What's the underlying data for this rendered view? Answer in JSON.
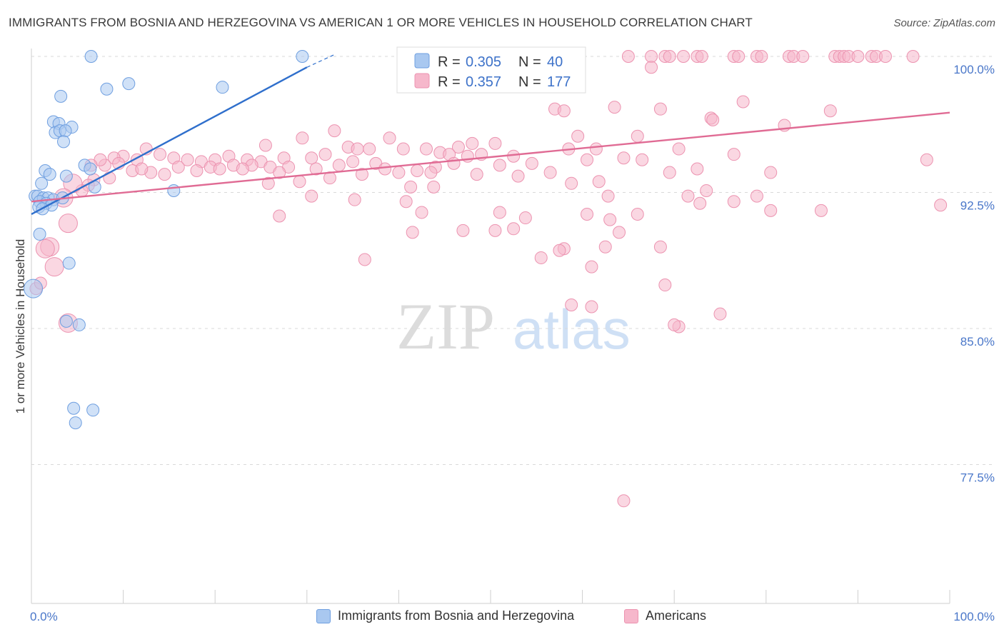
{
  "header": {
    "title": "IMMIGRANTS FROM BOSNIA AND HERZEGOVINA VS AMERICAN 1 OR MORE VEHICLES IN HOUSEHOLD CORRELATION CHART",
    "source": "Source: ZipAtlas.com"
  },
  "watermark": {
    "zip": "ZIP",
    "atlas": "atlas"
  },
  "legend": {
    "r_label": "R =",
    "n_label": "N =",
    "blue": {
      "r": "0.305",
      "n": "40"
    },
    "pink": {
      "r": "0.357",
      "n": "177"
    }
  },
  "colors": {
    "blue_fill": "#a9c8f0",
    "blue_stroke": "#6f9fe0",
    "blue_line": "#2f6fcc",
    "pink_fill": "#f6b7cb",
    "pink_stroke": "#ec93b0",
    "pink_line": "#e06b94",
    "tick_label": "#4a77c9",
    "grid": "#d9d9d9"
  },
  "chart_data": {
    "type": "scatter",
    "title": "IMMIGRANTS FROM BOSNIA AND HERZEGOVINA VS AMERICAN 1 OR MORE VEHICLES IN HOUSEHOLD CORRELATION CHART",
    "xlabel": "",
    "ylabel": "1 or more Vehicles in Household",
    "xlim": [
      0,
      100
    ],
    "ylim": [
      70,
      101.5
    ],
    "x_ticks": [
      "0.0%",
      "100.0%"
    ],
    "y_ticks": [
      {
        "value": 100.0,
        "label": "100.0%"
      },
      {
        "value": 92.5,
        "label": "92.5%"
      },
      {
        "value": 85.0,
        "label": "85.0%"
      },
      {
        "value": 77.5,
        "label": "77.5%"
      }
    ],
    "grid": true,
    "legend_position": "top-center",
    "series": [
      {
        "name": "Immigrants from Bosnia and Herzegovina",
        "color": "#a9c8f0",
        "r": 0.305,
        "n": 40,
        "trend": {
          "x": [
            0,
            30
          ],
          "y": [
            91.3,
            99.4
          ],
          "dash_x": [
            30,
            33
          ],
          "dash_y": [
            99.4,
            100.1
          ]
        },
        "points": [
          [
            6.5,
            100.0,
            1
          ],
          [
            29.5,
            100.0,
            1
          ],
          [
            8.2,
            98.2,
            1
          ],
          [
            10.6,
            98.5,
            1
          ],
          [
            20.8,
            98.3,
            1
          ],
          [
            3.2,
            97.8,
            1
          ],
          [
            2.4,
            96.4,
            1
          ],
          [
            3.0,
            96.3,
            1
          ],
          [
            4.4,
            96.1,
            1
          ],
          [
            2.6,
            95.8,
            1
          ],
          [
            3.1,
            95.9,
            1
          ],
          [
            3.7,
            95.9,
            1
          ],
          [
            3.5,
            95.3,
            1
          ],
          [
            5.8,
            94.0,
            1
          ],
          [
            6.4,
            93.8,
            1
          ],
          [
            1.5,
            93.7,
            1
          ],
          [
            2.0,
            93.5,
            1
          ],
          [
            3.8,
            93.4,
            1
          ],
          [
            1.1,
            93.0,
            1
          ],
          [
            6.9,
            92.8,
            1
          ],
          [
            15.5,
            92.6,
            1
          ],
          [
            0.4,
            92.3,
            1
          ],
          [
            0.7,
            92.3,
            1
          ],
          [
            1.3,
            92.2,
            1
          ],
          [
            1.8,
            92.2,
            1
          ],
          [
            2.4,
            92.1,
            1
          ],
          [
            0.9,
            92.0,
            1
          ],
          [
            1.6,
            91.9,
            1
          ],
          [
            2.2,
            91.8,
            1
          ],
          [
            3.4,
            92.2,
            1
          ],
          [
            0.8,
            91.7,
            1
          ],
          [
            1.2,
            91.6,
            1
          ],
          [
            0.9,
            90.2,
            1
          ],
          [
            4.1,
            88.6,
            1
          ],
          [
            0.2,
            87.2,
            2
          ],
          [
            5.2,
            85.2,
            1
          ],
          [
            3.8,
            85.4,
            1
          ],
          [
            4.6,
            80.6,
            1
          ],
          [
            6.7,
            80.5,
            1
          ],
          [
            4.8,
            79.8,
            1
          ]
        ]
      },
      {
        "name": "Americans",
        "color": "#f6b7cb",
        "r": 0.357,
        "n": 177,
        "trend": {
          "x": [
            0,
            100
          ],
          "y": [
            92.0,
            96.9
          ]
        },
        "points": [
          [
            65.0,
            100.0,
            1
          ],
          [
            67.5,
            100.0,
            1
          ],
          [
            69.0,
            100.0,
            1
          ],
          [
            69.5,
            100.0,
            1
          ],
          [
            71.0,
            100.0,
            1
          ],
          [
            72.5,
            100.0,
            1
          ],
          [
            73.0,
            100.0,
            1
          ],
          [
            76.5,
            100.0,
            1
          ],
          [
            77.0,
            100.0,
            1
          ],
          [
            79.0,
            100.0,
            1
          ],
          [
            79.5,
            100.0,
            1
          ],
          [
            82.5,
            100.0,
            1
          ],
          [
            83.0,
            100.0,
            1
          ],
          [
            84.0,
            100.0,
            1
          ],
          [
            87.5,
            100.0,
            1
          ],
          [
            88.0,
            100.0,
            1
          ],
          [
            88.5,
            100.0,
            1
          ],
          [
            89.0,
            100.0,
            1
          ],
          [
            90.0,
            100.0,
            1
          ],
          [
            91.5,
            100.0,
            1
          ],
          [
            92.0,
            100.0,
            1
          ],
          [
            93.0,
            100.0,
            1
          ],
          [
            96.0,
            100.0,
            1
          ],
          [
            53.5,
            99.5,
            1
          ],
          [
            67.5,
            99.4,
            1
          ],
          [
            53.0,
            98.8,
            1
          ],
          [
            77.5,
            97.5,
            1
          ],
          [
            57.0,
            97.1,
            1
          ],
          [
            58.0,
            97.0,
            1
          ],
          [
            63.5,
            97.2,
            1
          ],
          [
            68.5,
            97.1,
            1
          ],
          [
            87.0,
            97.0,
            1
          ],
          [
            74.0,
            96.6,
            1
          ],
          [
            74.2,
            96.5,
            1
          ],
          [
            82.0,
            96.2,
            1
          ],
          [
            33.0,
            95.9,
            1
          ],
          [
            59.5,
            95.6,
            1
          ],
          [
            66.0,
            95.6,
            1
          ],
          [
            50.5,
            95.2,
            1
          ],
          [
            39.0,
            95.5,
            1
          ],
          [
            46.5,
            95.0,
            1
          ],
          [
            48.0,
            95.2,
            1
          ],
          [
            29.5,
            95.5,
            1
          ],
          [
            34.5,
            95.0,
            1
          ],
          [
            25.5,
            95.1,
            1
          ],
          [
            35.5,
            94.9,
            1
          ],
          [
            36.8,
            94.9,
            1
          ],
          [
            40.5,
            94.9,
            1
          ],
          [
            43.0,
            94.9,
            1
          ],
          [
            44.5,
            94.7,
            1
          ],
          [
            49.0,
            94.6,
            1
          ],
          [
            45.5,
            94.6,
            1
          ],
          [
            47.5,
            94.5,
            1
          ],
          [
            52.5,
            94.5,
            1
          ],
          [
            58.5,
            94.9,
            1
          ],
          [
            61.5,
            94.9,
            1
          ],
          [
            70.5,
            94.9,
            1
          ],
          [
            76.5,
            94.6,
            1
          ],
          [
            32.0,
            94.6,
            1
          ],
          [
            30.5,
            94.4,
            1
          ],
          [
            27.5,
            94.4,
            1
          ],
          [
            25.0,
            94.2,
            1
          ],
          [
            23.5,
            94.3,
            1
          ],
          [
            21.5,
            94.5,
            1
          ],
          [
            20.0,
            94.3,
            1
          ],
          [
            18.5,
            94.2,
            1
          ],
          [
            17.0,
            94.3,
            1
          ],
          [
            15.5,
            94.4,
            1
          ],
          [
            14.0,
            94.6,
            1
          ],
          [
            12.5,
            94.9,
            1
          ],
          [
            11.5,
            94.3,
            1
          ],
          [
            10.0,
            94.5,
            1
          ],
          [
            9.0,
            94.4,
            1
          ],
          [
            8.0,
            94.0,
            1
          ],
          [
            7.5,
            94.3,
            1
          ],
          [
            6.5,
            94.0,
            1
          ],
          [
            22.0,
            94.0,
            1
          ],
          [
            24.0,
            94.0,
            1
          ],
          [
            26.0,
            93.9,
            1
          ],
          [
            28.0,
            93.9,
            1
          ],
          [
            31.0,
            93.8,
            1
          ],
          [
            33.5,
            94.0,
            1
          ],
          [
            35.0,
            94.2,
            1
          ],
          [
            37.5,
            94.1,
            1
          ],
          [
            38.5,
            93.8,
            1
          ],
          [
            42.0,
            93.7,
            1
          ],
          [
            44.0,
            93.9,
            1
          ],
          [
            46.0,
            94.1,
            1
          ],
          [
            51.0,
            94.0,
            1
          ],
          [
            54.5,
            94.1,
            1
          ],
          [
            60.5,
            94.3,
            1
          ],
          [
            72.5,
            93.8,
            1
          ],
          [
            80.5,
            93.6,
            1
          ],
          [
            97.5,
            94.3,
            1
          ],
          [
            16.0,
            93.9,
            1
          ],
          [
            19.5,
            93.9,
            1
          ],
          [
            13.0,
            93.6,
            1
          ],
          [
            14.5,
            93.5,
            1
          ],
          [
            11.0,
            93.7,
            1
          ],
          [
            12.0,
            93.8,
            1
          ],
          [
            18.0,
            93.7,
            1
          ],
          [
            20.5,
            93.8,
            1
          ],
          [
            23.0,
            93.8,
            1
          ],
          [
            27.0,
            93.6,
            1
          ],
          [
            32.5,
            93.3,
            1
          ],
          [
            36.0,
            93.5,
            1
          ],
          [
            40.0,
            93.6,
            1
          ],
          [
            43.5,
            93.6,
            1
          ],
          [
            48.5,
            93.5,
            1
          ],
          [
            53.0,
            93.4,
            1
          ],
          [
            56.5,
            93.6,
            1
          ],
          [
            69.5,
            93.6,
            1
          ],
          [
            64.5,
            94.4,
            1
          ],
          [
            66.5,
            94.3,
            1
          ],
          [
            9.5,
            94.1,
            1
          ],
          [
            8.5,
            93.3,
            1
          ],
          [
            6.8,
            93.2,
            1
          ],
          [
            6.2,
            92.9,
            1
          ],
          [
            5.5,
            92.6,
            1
          ],
          [
            4.5,
            93.0,
            2
          ],
          [
            3.5,
            92.2,
            2
          ],
          [
            25.8,
            93.0,
            1
          ],
          [
            29.2,
            93.1,
            1
          ],
          [
            41.3,
            92.8,
            1
          ],
          [
            43.8,
            92.8,
            1
          ],
          [
            58.8,
            93.0,
            1
          ],
          [
            61.8,
            93.1,
            1
          ],
          [
            73.5,
            92.6,
            1
          ],
          [
            30.5,
            92.3,
            1
          ],
          [
            35.2,
            92.1,
            1
          ],
          [
            40.8,
            92.0,
            1
          ],
          [
            62.8,
            92.3,
            1
          ],
          [
            71.5,
            92.3,
            1
          ],
          [
            72.8,
            91.9,
            1
          ],
          [
            76.5,
            92.0,
            1
          ],
          [
            79.0,
            92.3,
            1
          ],
          [
            42.5,
            91.4,
            1
          ],
          [
            51.0,
            91.4,
            1
          ],
          [
            53.8,
            91.1,
            1
          ],
          [
            60.5,
            91.3,
            1
          ],
          [
            63.0,
            91.0,
            1
          ],
          [
            66.0,
            91.3,
            1
          ],
          [
            80.5,
            91.5,
            1
          ],
          [
            86.0,
            91.5,
            1
          ],
          [
            27.0,
            91.2,
            1
          ],
          [
            99.0,
            91.8,
            1
          ],
          [
            4.0,
            90.8,
            2
          ],
          [
            41.5,
            90.3,
            1
          ],
          [
            47.0,
            90.4,
            1
          ],
          [
            50.5,
            90.4,
            1
          ],
          [
            52.5,
            90.5,
            1
          ],
          [
            64.0,
            90.3,
            1
          ],
          [
            68.5,
            89.5,
            1
          ],
          [
            58.0,
            89.4,
            1
          ],
          [
            57.5,
            89.3,
            1
          ],
          [
            62.5,
            89.5,
            1
          ],
          [
            2.0,
            89.5,
            2
          ],
          [
            1.5,
            89.4,
            2
          ],
          [
            2.5,
            88.4,
            2
          ],
          [
            55.5,
            88.9,
            1
          ],
          [
            36.3,
            88.8,
            1
          ],
          [
            61.0,
            88.4,
            1
          ],
          [
            69.0,
            87.4,
            1
          ],
          [
            0.5,
            87.2,
            1
          ],
          [
            1.0,
            87.5,
            1
          ],
          [
            58.8,
            86.3,
            1
          ],
          [
            61.0,
            86.2,
            1
          ],
          [
            70.5,
            85.1,
            1
          ],
          [
            70.0,
            85.2,
            1
          ],
          [
            75.0,
            85.8,
            1
          ],
          [
            4.0,
            85.3,
            2
          ],
          [
            64.5,
            75.5,
            1
          ]
        ]
      }
    ]
  },
  "bottom_legend": {
    "items": [
      {
        "label": "Immigrants from Bosnia and Herzegovina"
      },
      {
        "label": "Americans"
      }
    ]
  }
}
